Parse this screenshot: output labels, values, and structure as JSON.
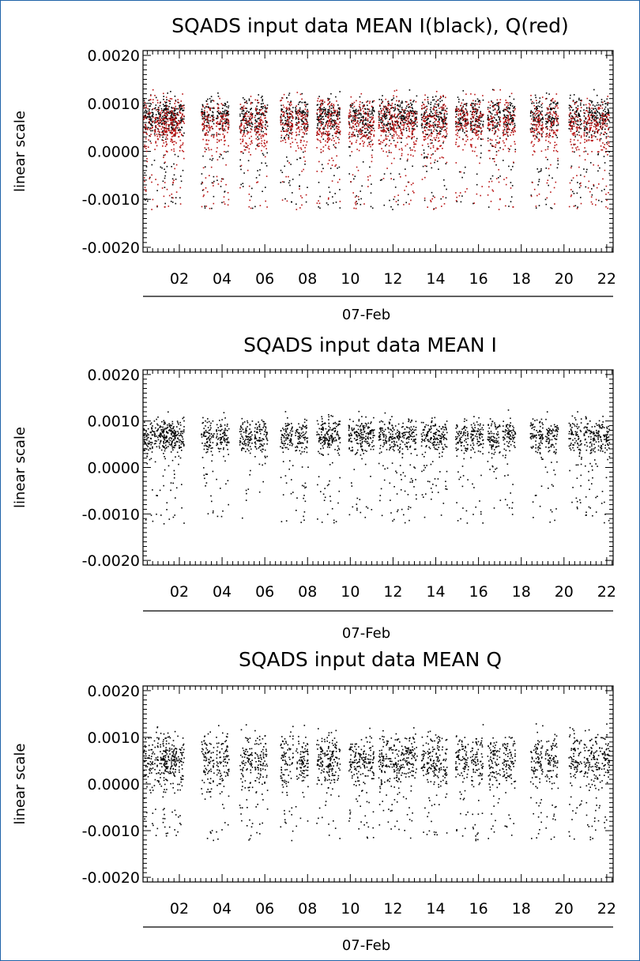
{
  "chart_data": [
    {
      "type": "scatter",
      "title": "SQADS input data MEAN I(black), Q(red)",
      "ylabel": "linear scale",
      "xlabel": "07-Feb",
      "ylim": [
        -0.0021,
        0.0021
      ],
      "xlim": [
        0.3,
        22.3
      ],
      "yticks": [
        "0.0020",
        "0.0010",
        "0.0000",
        "-0.0010",
        "-0.0020"
      ],
      "ytick_values": [
        0.002,
        0.001,
        0.0,
        -0.001,
        -0.002
      ],
      "xticks": [
        "02",
        "04",
        "06",
        "08",
        "10",
        "12",
        "14",
        "16",
        "18",
        "20",
        "22"
      ],
      "xtick_values": [
        2,
        4,
        6,
        8,
        10,
        12,
        14,
        16,
        18,
        20,
        22
      ],
      "series": [
        {
          "name": "I",
          "color": "#000000",
          "center": 0.00075,
          "spread": 0.00032,
          "low_tail": -0.0012
        },
        {
          "name": "Q",
          "color": "#b81212",
          "center": 0.0006,
          "spread": 0.00045,
          "low_tail": -0.0012
        }
      ]
    },
    {
      "type": "scatter",
      "title": "SQADS input data MEAN I",
      "ylabel": "linear scale",
      "xlabel": "07-Feb",
      "ylim": [
        -0.0021,
        0.0021
      ],
      "xlim": [
        0.3,
        22.3
      ],
      "yticks": [
        "0.0020",
        "0.0010",
        "0.0000",
        "-0.0010",
        "-0.0020"
      ],
      "ytick_values": [
        0.002,
        0.001,
        0.0,
        -0.001,
        -0.002
      ],
      "xticks": [
        "02",
        "04",
        "06",
        "08",
        "10",
        "12",
        "14",
        "16",
        "18",
        "20",
        "22"
      ],
      "xtick_values": [
        2,
        4,
        6,
        8,
        10,
        12,
        14,
        16,
        18,
        20,
        22
      ],
      "series": [
        {
          "name": "I",
          "color": "#000000",
          "center": 0.0007,
          "spread": 0.0003,
          "low_tail": -0.0012
        }
      ]
    },
    {
      "type": "scatter",
      "title": "SQADS input data MEAN Q",
      "ylabel": "linear scale",
      "xlabel": "07-Feb",
      "ylim": [
        -0.0021,
        0.0021
      ],
      "xlim": [
        0.3,
        22.3
      ],
      "yticks": [
        "0.0020",
        "0.0010",
        "0.0000",
        "-0.0010",
        "-0.0020"
      ],
      "ytick_values": [
        0.002,
        0.001,
        0.0,
        -0.001,
        -0.002
      ],
      "xticks": [
        "02",
        "04",
        "06",
        "08",
        "10",
        "12",
        "14",
        "16",
        "18",
        "20",
        "22"
      ],
      "xtick_values": [
        2,
        4,
        6,
        8,
        10,
        12,
        14,
        16,
        18,
        20,
        22
      ],
      "series": [
        {
          "name": "Q",
          "color": "#000000",
          "center": 0.00055,
          "spread": 0.00045,
          "low_tail": -0.0012
        }
      ]
    }
  ],
  "bursts": [
    0.45,
    1.1,
    1.5,
    1.9,
    3.3,
    4.0,
    5.1,
    5.8,
    7.0,
    7.7,
    8.7,
    9.2,
    10.2,
    10.8,
    11.6,
    12.2,
    12.8,
    13.6,
    14.2,
    15.2,
    15.9,
    16.7,
    17.4,
    18.7,
    19.4,
    20.5,
    21.2,
    21.8
  ]
}
